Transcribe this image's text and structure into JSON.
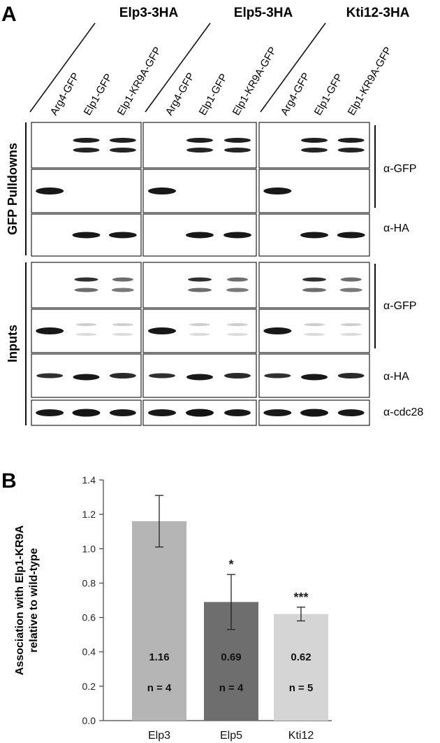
{
  "panel_a": {
    "letter": "A",
    "groups": [
      "Elp3-3HA",
      "Elp5-3HA",
      "Kti12-3HA"
    ],
    "lanes": [
      "Arg4-GFP",
      "Elp1-GFP",
      "Elp1-KR9A-GFP"
    ],
    "section_pulldown": "GFP Pulldowns",
    "section_inputs": "Inputs",
    "antibody_gfp": "α-GFP",
    "antibody_ha": "α-HA",
    "antibody_cdc28": "α-cdc28"
  },
  "panel_b": {
    "letter": "B",
    "chart_data": {
      "type": "bar",
      "categories": [
        "Elp3",
        "Elp5",
        "Kti12"
      ],
      "values": [
        1.16,
        0.69,
        0.62
      ],
      "error": [
        0.15,
        0.16,
        0.04
      ],
      "value_labels": [
        "1.16",
        "0.69",
        "0.62"
      ],
      "n_labels": [
        "n = 4",
        "n = 4",
        "n = 5"
      ],
      "significance": [
        "",
        "*",
        "***"
      ],
      "colors": [
        "#b5b5b5",
        "#6e6e6e",
        "#d5d5d5"
      ],
      "ylabel_line1": "Association with Elp1-KR9A",
      "ylabel_line2": "relative to wild-type",
      "ylim": [
        0,
        1.4
      ],
      "yticks": [
        "0.0",
        "0.2",
        "0.4",
        "0.6",
        "0.8",
        "1.0",
        "1.2",
        "1.4"
      ],
      "grid": false
    }
  }
}
